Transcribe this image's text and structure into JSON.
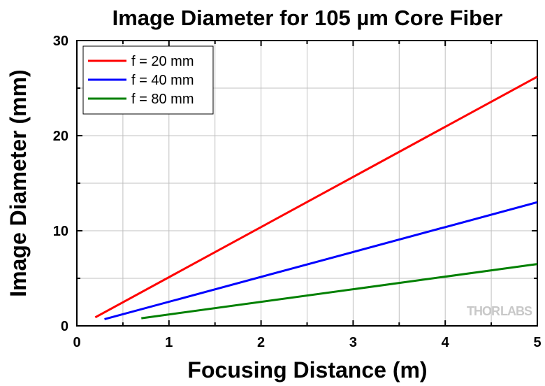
{
  "chart_data": {
    "type": "line",
    "title": "Image Diameter for 105 µm Core Fiber",
    "xlabel": "Focusing Distance (m)",
    "ylabel": "Image Diameter (mm)",
    "xlim": [
      0,
      5
    ],
    "ylim": [
      0,
      30
    ],
    "xticks": [
      0,
      1,
      2,
      3,
      4,
      5
    ],
    "yticks": [
      0,
      10,
      20,
      30
    ],
    "grid": true,
    "legend_position": "top-left",
    "series": [
      {
        "name": "f = 20 mm",
        "color": "#ff0000",
        "x": [
          0.2,
          5.0
        ],
        "y": [
          0.9,
          26.2
        ]
      },
      {
        "name": "f = 40 mm",
        "color": "#0000ff",
        "x": [
          0.3,
          5.0
        ],
        "y": [
          0.7,
          13.0
        ]
      },
      {
        "name": "f = 80 mm",
        "color": "#008000",
        "x": [
          0.7,
          5.0
        ],
        "y": [
          0.8,
          6.5
        ]
      }
    ]
  },
  "watermark": {
    "text_left": "THOR",
    "text_right": "LABS"
  }
}
